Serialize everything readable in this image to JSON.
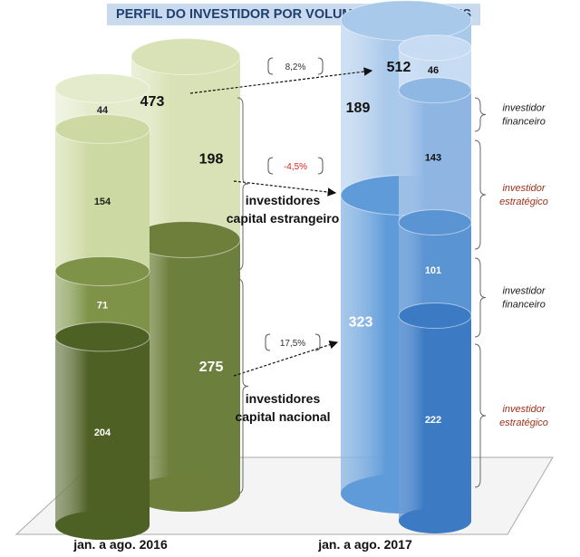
{
  "chart_data": {
    "type": "bar",
    "title": "PERFIL DO INVESTIDOR POR VOLUME DE OPERAÇÕES",
    "categories": [
      "jan. a ago. 2016",
      "jan. a ago. 2017"
    ],
    "totals": [
      473,
      512
    ],
    "groups": [
      {
        "name": "investidores capital estrangeiro",
        "values": [
          198,
          189
        ],
        "change": "-4,5%",
        "change_color": "#e8201d"
      },
      {
        "name": "investidores capital nacional",
        "values": [
          275,
          323
        ],
        "change": "17,5%",
        "change_color": "#333333"
      }
    ],
    "series": [
      {
        "name": "investidor financeiro",
        "group": "investidores capital estrangeiro",
        "values": [
          44,
          46
        ]
      },
      {
        "name": "investidor estratégico",
        "group": "investidores capital estrangeiro",
        "values": [
          154,
          143
        ]
      },
      {
        "name": "investidor financeiro",
        "group": "investidores capital nacional",
        "values": [
          71,
          101
        ]
      },
      {
        "name": "investidor estratégico",
        "group": "investidores capital nacional",
        "values": [
          204,
          222
        ]
      }
    ],
    "total_change": "8,2%",
    "group_labels_2016": [
      "investidores capital estrangeiro",
      "investidores capital nacional"
    ],
    "right_labels_2017": [
      {
        "text": "investidor financeiro",
        "color": "#1a1a1a"
      },
      {
        "text": "investidor estratégico",
        "color": "#a0301a"
      },
      {
        "text": "investidor financeiro",
        "color": "#1a1a1a"
      },
      {
        "text": "investidor estratégico",
        "color": "#a0301a"
      }
    ],
    "colors": {
      "g2016_foreign_fin": "#e4ebcc",
      "g2016_foreign_str": "#cdd9a2",
      "g2016_national_fin": "#7e9347",
      "g2016_national_str": "#4e6125",
      "g2016_big_foreign": "#d8e2b6",
      "g2016_big_national": "#6e7f3c",
      "g2017_foreign_fin": "#c7dbf2",
      "g2017_foreign_str": "#8fb7e3",
      "g2017_national_fin": "#5b94d3",
      "g2017_national_str": "#3c7ac4",
      "g2017_big_foreign": "#a9c9eb",
      "g2017_big_national": "#5f9bd9",
      "title_band": "#c9d9ee",
      "title_text": "#1f3f6f"
    }
  }
}
